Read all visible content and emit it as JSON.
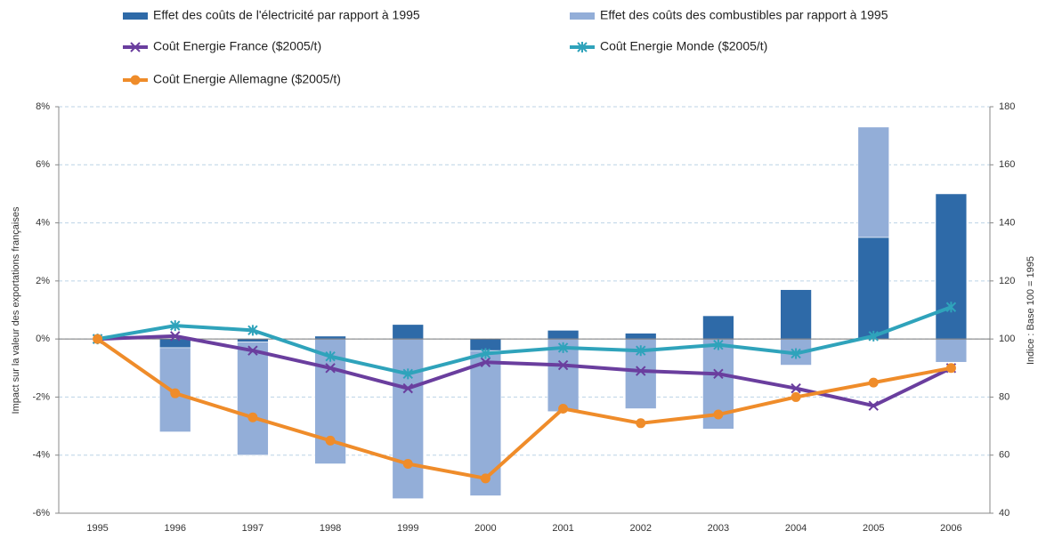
{
  "chart_data": {
    "type": "combo",
    "categories": [
      "1995",
      "1996",
      "1997",
      "1998",
      "1999",
      "2000",
      "2001",
      "2002",
      "2003",
      "2004",
      "2005",
      "2006"
    ],
    "series": [
      {
        "name": "Effet des coûts de l'électricité par rapport à 1995",
        "type": "bar",
        "color": "#2e6aa8",
        "values": [
          0,
          -0.3,
          -0.1,
          0.1,
          0.5,
          -0.4,
          0.3,
          0.2,
          0.8,
          1.7,
          3.5,
          5.0
        ]
      },
      {
        "name": "Effet des coûts des combustibles par rapport à 1995",
        "type": "bar",
        "color": "#93aed8",
        "values": [
          0,
          -2.9,
          -3.9,
          -4.3,
          -5.5,
          -5.0,
          -2.5,
          -2.4,
          -3.1,
          -0.9,
          3.8,
          -0.8
        ]
      },
      {
        "name": "Coût Energie France ($2005/t)",
        "type": "line",
        "axis": "y2",
        "marker": "x",
        "color": "#6a3e9e",
        "values": [
          100,
          101,
          96,
          90,
          83,
          92,
          91,
          89,
          88,
          83,
          77,
          90
        ]
      },
      {
        "name": "Coût Energie Monde ($2005/t)",
        "type": "line",
        "axis": "y2",
        "marker": "star",
        "color": "#2fa3bb",
        "values": [
          100,
          104.6,
          103,
          94,
          88,
          95,
          97,
          96,
          98,
          95,
          101,
          111
        ]
      },
      {
        "name": "Coût Energie Allemagne ($2005/t)",
        "type": "line",
        "axis": "y2",
        "marker": "circle",
        "color": "#ef8c2a",
        "values": [
          100,
          81.3,
          73,
          65,
          57,
          52,
          76,
          71,
          74,
          80,
          85,
          90
        ]
      }
    ],
    "ylabel": "Impact sur la valeur des exportations françaises",
    "y2label": "Indice : Base 100 = 1995",
    "ylim": [
      -6,
      8
    ],
    "yticks": [
      {
        "value": -6,
        "label": "-6%"
      },
      {
        "value": -4,
        "label": "-4%"
      },
      {
        "value": -2,
        "label": "-2%"
      },
      {
        "value": 0,
        "label": "0%"
      },
      {
        "value": 2,
        "label": "2%"
      },
      {
        "value": 4,
        "label": "4%"
      },
      {
        "value": 6,
        "label": "6%"
      },
      {
        "value": 8,
        "label": "8%"
      }
    ],
    "y2lim": [
      40,
      180
    ],
    "y2ticks": [
      40,
      60,
      80,
      100,
      120,
      140,
      160,
      180
    ],
    "grid": true,
    "legend": "top"
  }
}
